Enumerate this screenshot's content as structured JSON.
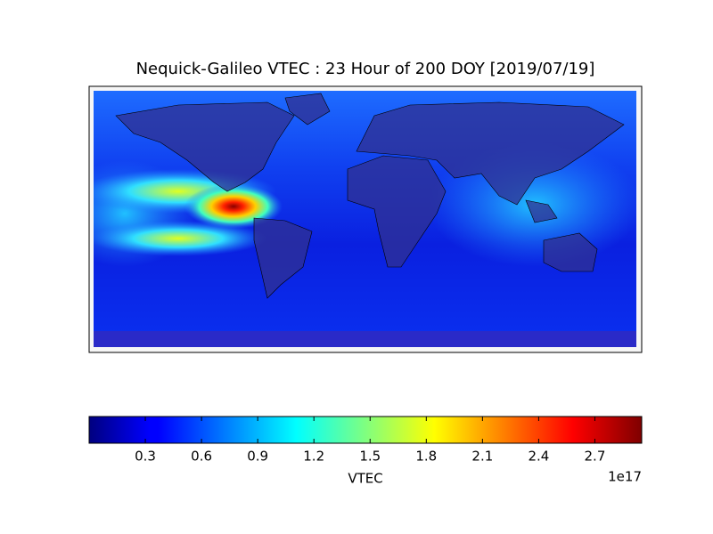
{
  "map": {
    "title": "Nequick-Galileo VTEC : 23 Hour of 200 DOY [2019/07/19]",
    "colorbar": {
      "label": "VTEC",
      "offset_label": "1e17",
      "lim": [
        0,
        2.95
      ],
      "ticks": [
        0.3,
        0.6,
        0.9,
        1.2,
        1.5,
        1.8,
        2.1,
        2.4,
        2.7
      ]
    }
  }
}
